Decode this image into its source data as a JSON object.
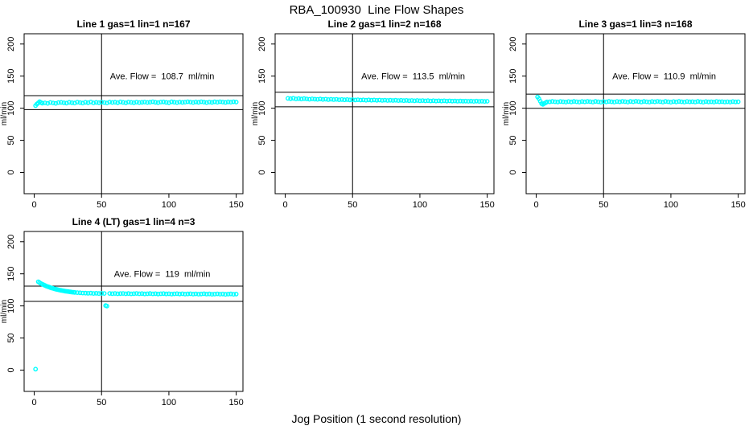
{
  "main_title": "RBA_100930  Line Flow Shapes",
  "outer_xlabel": "Jog Position (1 second resolution)",
  "colors": {
    "points": "#00FFFF",
    "axis": "#000000",
    "background": "#FFFFFF"
  },
  "chart_data": [
    {
      "type": "scatter",
      "title": "Line 1 gas=1 lin=1 n=167",
      "annotation": "Ave. Flow =  108.7  ml/min",
      "ave_flow_ml_min": 108.7,
      "ylabel": "ml/min",
      "x_ticks": [
        0,
        50,
        100,
        150
      ],
      "y_ticks": [
        0,
        50,
        100,
        150,
        200
      ],
      "xlim": [
        -7.5,
        155
      ],
      "ylim": [
        -33.2,
        216
      ],
      "grid": false,
      "legend": "none",
      "vline_x": 50,
      "hlines": [
        119.6,
        97.8
      ],
      "points": [
        [
          1,
          104
        ],
        [
          2,
          106.5
        ],
        [
          3,
          108.2
        ],
        [
          4,
          110.2
        ],
        [
          5,
          108.9
        ],
        [
          6,
          107.8
        ],
        [
          8,
          108.3
        ],
        [
          10,
          107.6
        ],
        [
          12,
          108.9
        ],
        [
          14,
          108.2
        ],
        [
          16,
          107.6
        ],
        [
          18,
          108.8
        ],
        [
          20,
          109.0
        ],
        [
          22,
          108.4
        ],
        [
          24,
          107.9
        ],
        [
          26,
          109.2
        ],
        [
          28,
          108.6
        ],
        [
          30,
          108.0
        ],
        [
          32,
          109.4
        ],
        [
          34,
          108.8
        ],
        [
          36,
          108.1
        ],
        [
          38,
          109.2
        ],
        [
          40,
          108.5
        ],
        [
          42,
          109.7
        ],
        [
          44,
          108.3
        ],
        [
          46,
          109.0
        ],
        [
          48,
          108.6
        ],
        [
          50,
          109.4
        ],
        [
          52,
          108.8
        ],
        [
          54,
          108.2
        ],
        [
          56,
          109.6
        ],
        [
          58,
          108.9
        ],
        [
          60,
          109.3
        ],
        [
          62,
          108.5
        ],
        [
          64,
          109.8
        ],
        [
          66,
          109.1
        ],
        [
          68,
          108.4
        ],
        [
          70,
          109.6
        ],
        [
          72,
          109.0
        ],
        [
          74,
          108.6
        ],
        [
          76,
          109.4
        ],
        [
          78,
          108.8
        ],
        [
          80,
          109.2
        ],
        [
          82,
          109.6
        ],
        [
          84,
          108.9
        ],
        [
          86,
          109.3
        ],
        [
          88,
          110.0
        ],
        [
          90,
          109.2
        ],
        [
          92,
          108.7
        ],
        [
          94,
          109.5
        ],
        [
          96,
          109.8
        ],
        [
          98,
          109.1
        ],
        [
          100,
          108.5
        ],
        [
          102,
          109.9
        ],
        [
          104,
          109.3
        ],
        [
          106,
          108.8
        ],
        [
          108,
          109.6
        ],
        [
          110,
          109.0
        ],
        [
          112,
          109.4
        ],
        [
          114,
          110.0
        ],
        [
          116,
          109.5
        ],
        [
          118,
          108.9
        ],
        [
          120,
          109.7
        ],
        [
          122,
          109.2
        ],
        [
          124,
          110.0
        ],
        [
          126,
          109.4
        ],
        [
          128,
          108.8
        ],
        [
          130,
          109.6
        ],
        [
          132,
          109.1
        ],
        [
          134,
          109.9
        ],
        [
          136,
          109.3
        ],
        [
          138,
          110.1
        ],
        [
          140,
          109.6
        ],
        [
          142,
          109.0
        ],
        [
          144,
          109.8
        ],
        [
          146,
          109.4
        ],
        [
          148,
          110.0
        ],
        [
          150,
          109.5
        ]
      ]
    },
    {
      "type": "scatter",
      "title": "Line 2 gas=1 lin=2 n=168",
      "annotation": "Ave. Flow =  113.5  ml/min",
      "ave_flow_ml_min": 113.5,
      "ylabel": "ml/min",
      "x_ticks": [
        0,
        50,
        100,
        150
      ],
      "y_ticks": [
        0,
        50,
        100,
        150,
        200
      ],
      "xlim": [
        -7.5,
        155
      ],
      "ylim": [
        -33.2,
        216
      ],
      "grid": false,
      "legend": "none",
      "vline_x": 50,
      "hlines": [
        124.9,
        102.2
      ],
      "points": [
        [
          2,
          115.3
        ],
        [
          4,
          114.8
        ],
        [
          6,
          115.4
        ],
        [
          8,
          114.5
        ],
        [
          10,
          115.0
        ],
        [
          12,
          114.3
        ],
        [
          14,
          114.9
        ],
        [
          16,
          114.4
        ],
        [
          18,
          113.9
        ],
        [
          20,
          114.6
        ],
        [
          22,
          114.1
        ],
        [
          24,
          113.8
        ],
        [
          26,
          114.3
        ],
        [
          28,
          113.7
        ],
        [
          30,
          114.1
        ],
        [
          32,
          113.5
        ],
        [
          34,
          113.9
        ],
        [
          36,
          113.4
        ],
        [
          38,
          113.8
        ],
        [
          40,
          113.2
        ],
        [
          42,
          113.6
        ],
        [
          44,
          113.1
        ],
        [
          46,
          113.5
        ],
        [
          48,
          112.9
        ],
        [
          50,
          113.3
        ],
        [
          52,
          112.8
        ],
        [
          54,
          113.2
        ],
        [
          56,
          112.7
        ],
        [
          58,
          113.0
        ],
        [
          60,
          112.5
        ],
        [
          62,
          112.9
        ],
        [
          64,
          112.4
        ],
        [
          66,
          112.8
        ],
        [
          68,
          112.3
        ],
        [
          70,
          112.7
        ],
        [
          72,
          112.2
        ],
        [
          74,
          112.6
        ],
        [
          76,
          112.1
        ],
        [
          78,
          112.5
        ],
        [
          80,
          112.0
        ],
        [
          82,
          112.4
        ],
        [
          84,
          111.9
        ],
        [
          86,
          112.3
        ],
        [
          88,
          111.8
        ],
        [
          90,
          112.2
        ],
        [
          92,
          111.7
        ],
        [
          94,
          112.1
        ],
        [
          96,
          111.6
        ],
        [
          98,
          112.0
        ],
        [
          100,
          111.5
        ],
        [
          102,
          111.9
        ],
        [
          104,
          111.4
        ],
        [
          106,
          111.8
        ],
        [
          108,
          111.3
        ],
        [
          110,
          111.7
        ],
        [
          112,
          111.2
        ],
        [
          114,
          111.6
        ],
        [
          116,
          111.2
        ],
        [
          118,
          111.5
        ],
        [
          120,
          111.1
        ],
        [
          122,
          111.4
        ],
        [
          124,
          111.0
        ],
        [
          126,
          111.3
        ],
        [
          128,
          110.9
        ],
        [
          130,
          111.2
        ],
        [
          132,
          110.9
        ],
        [
          134,
          111.1
        ],
        [
          136,
          110.8
        ],
        [
          138,
          111.0
        ],
        [
          140,
          110.7
        ],
        [
          142,
          111.0
        ],
        [
          144,
          110.7
        ],
        [
          146,
          110.9
        ],
        [
          148,
          110.6
        ],
        [
          150,
          110.8
        ]
      ]
    },
    {
      "type": "scatter",
      "title": "Line 3 gas=1 lin=3 n=168",
      "annotation": "Ave. Flow =  110.9  ml/min",
      "ave_flow_ml_min": 110.9,
      "ylabel": "ml/min",
      "x_ticks": [
        0,
        50,
        100,
        150
      ],
      "y_ticks": [
        0,
        50,
        100,
        150,
        200
      ],
      "xlim": [
        -7.5,
        155
      ],
      "ylim": [
        -33.2,
        216
      ],
      "grid": false,
      "legend": "none",
      "vline_x": 50,
      "hlines": [
        122.0,
        99.8
      ],
      "points": [
        [
          1,
          117.6
        ],
        [
          2,
          114.8
        ],
        [
          3,
          110.9
        ],
        [
          4,
          107.2
        ],
        [
          5,
          106.0
        ],
        [
          6,
          107.4
        ],
        [
          7,
          108.6
        ],
        [
          8,
          109.8
        ],
        [
          10,
          109.9
        ],
        [
          12,
          110.6
        ],
        [
          14,
          110.1
        ],
        [
          16,
          109.7
        ],
        [
          18,
          110.4
        ],
        [
          20,
          110.0
        ],
        [
          22,
          109.6
        ],
        [
          24,
          110.3
        ],
        [
          26,
          109.8
        ],
        [
          28,
          110.5
        ],
        [
          30,
          110.1
        ],
        [
          32,
          109.5
        ],
        [
          34,
          110.4
        ],
        [
          36,
          109.9
        ],
        [
          38,
          110.6
        ],
        [
          40,
          110.2
        ],
        [
          42,
          109.6
        ],
        [
          44,
          110.5
        ],
        [
          46,
          110.0
        ],
        [
          48,
          109.4
        ],
        [
          50,
          110.3
        ],
        [
          52,
          109.8
        ],
        [
          54,
          110.6
        ],
        [
          56,
          110.1
        ],
        [
          58,
          109.5
        ],
        [
          60,
          110.4
        ],
        [
          62,
          109.9
        ],
        [
          64,
          110.7
        ],
        [
          66,
          110.2
        ],
        [
          68,
          109.6
        ],
        [
          70,
          110.5
        ],
        [
          72,
          110.0
        ],
        [
          74,
          110.8
        ],
        [
          76,
          110.3
        ],
        [
          78,
          109.7
        ],
        [
          80,
          110.6
        ],
        [
          82,
          110.1
        ],
        [
          84,
          109.5
        ],
        [
          86,
          110.4
        ],
        [
          88,
          109.9
        ],
        [
          90,
          110.7
        ],
        [
          92,
          110.2
        ],
        [
          94,
          109.6
        ],
        [
          96,
          110.5
        ],
        [
          98,
          110.0
        ],
        [
          100,
          109.4
        ],
        [
          102,
          110.3
        ],
        [
          104,
          109.8
        ],
        [
          106,
          110.6
        ],
        [
          108,
          110.1
        ],
        [
          110,
          109.5
        ],
        [
          112,
          110.4
        ],
        [
          114,
          109.9
        ],
        [
          116,
          110.2
        ],
        [
          118,
          109.7
        ],
        [
          120,
          110.5
        ],
        [
          122,
          110.0
        ],
        [
          124,
          109.4
        ],
        [
          126,
          110.3
        ],
        [
          128,
          109.8
        ],
        [
          130,
          110.1
        ],
        [
          132,
          109.6
        ],
        [
          134,
          110.4
        ],
        [
          136,
          109.9
        ],
        [
          138,
          110.2
        ],
        [
          140,
          109.7
        ],
        [
          142,
          110.0
        ],
        [
          144,
          109.5
        ],
        [
          146,
          110.3
        ],
        [
          148,
          109.8
        ],
        [
          150,
          110.1
        ]
      ]
    },
    {
      "type": "scatter",
      "title": "Line 4 (LT) gas=1 lin=4 n=3",
      "annotation": "Ave. Flow =  119  ml/min",
      "ave_flow_ml_min": 119,
      "ylabel": "ml/min",
      "x_ticks": [
        0,
        50,
        100,
        150
      ],
      "y_ticks": [
        0,
        50,
        100,
        150,
        200
      ],
      "xlim": [
        -7.5,
        155
      ],
      "ylim": [
        -33.2,
        216
      ],
      "grid": false,
      "legend": "none",
      "vline_x": 50,
      "hlines": [
        130.9,
        107.1
      ],
      "points": [
        [
          1,
          1.5
        ],
        [
          3,
          137.6
        ],
        [
          4,
          136.2
        ],
        [
          5,
          134.9
        ],
        [
          6,
          133.8
        ],
        [
          7,
          132.8
        ],
        [
          8,
          131.8
        ],
        [
          9,
          130.9
        ],
        [
          10,
          130.1
        ],
        [
          11,
          129.3
        ],
        [
          12,
          128.6
        ],
        [
          13,
          127.9
        ],
        [
          14,
          127.3
        ],
        [
          15,
          126.7
        ],
        [
          16,
          126.1
        ],
        [
          17,
          125.6
        ],
        [
          18,
          125.1
        ],
        [
          19,
          124.6
        ],
        [
          20,
          124.2
        ],
        [
          21,
          123.8
        ],
        [
          22,
          123.4
        ],
        [
          23,
          123.0
        ],
        [
          24,
          122.7
        ],
        [
          25,
          122.4
        ],
        [
          26,
          122.1
        ],
        [
          27,
          121.8
        ],
        [
          28,
          121.5
        ],
        [
          29,
          121.3
        ],
        [
          30,
          121.1
        ],
        [
          32,
          120.7
        ],
        [
          34,
          120.4
        ],
        [
          36,
          120.1
        ],
        [
          38,
          119.9
        ],
        [
          40,
          119.7
        ],
        [
          42,
          119.9
        ],
        [
          44,
          119.5
        ],
        [
          46,
          119.7
        ],
        [
          48,
          119.3
        ],
        [
          50,
          119.6
        ],
        [
          52,
          119.4
        ],
        [
          53,
          100.5
        ],
        [
          54,
          99.8
        ],
        [
          56,
          119.5
        ],
        [
          58,
          119.1
        ],
        [
          60,
          119.4
        ],
        [
          62,
          118.9
        ],
        [
          64,
          119.2
        ],
        [
          66,
          119.5
        ],
        [
          68,
          119.0
        ],
        [
          70,
          119.3
        ],
        [
          72,
          118.8
        ],
        [
          74,
          119.1
        ],
        [
          76,
          119.4
        ],
        [
          78,
          118.9
        ],
        [
          80,
          119.2
        ],
        [
          82,
          118.7
        ],
        [
          84,
          119.0
        ],
        [
          86,
          119.3
        ],
        [
          88,
          118.8
        ],
        [
          90,
          119.1
        ],
        [
          92,
          118.6
        ],
        [
          94,
          118.9
        ],
        [
          96,
          119.2
        ],
        [
          98,
          118.7
        ],
        [
          100,
          119.0
        ],
        [
          102,
          118.5
        ],
        [
          104,
          118.8
        ],
        [
          106,
          119.1
        ],
        [
          108,
          118.6
        ],
        [
          110,
          118.9
        ],
        [
          112,
          118.4
        ],
        [
          114,
          118.7
        ],
        [
          116,
          119.0
        ],
        [
          118,
          118.5
        ],
        [
          120,
          118.8
        ],
        [
          122,
          118.3
        ],
        [
          124,
          118.6
        ],
        [
          126,
          118.9
        ],
        [
          128,
          118.4
        ],
        [
          130,
          118.7
        ],
        [
          132,
          118.2
        ],
        [
          134,
          118.5
        ],
        [
          136,
          118.8
        ],
        [
          138,
          118.3
        ],
        [
          140,
          118.6
        ],
        [
          142,
          118.1
        ],
        [
          144,
          118.4
        ],
        [
          146,
          118.7
        ],
        [
          148,
          118.2
        ],
        [
          150,
          118.5
        ]
      ]
    }
  ]
}
